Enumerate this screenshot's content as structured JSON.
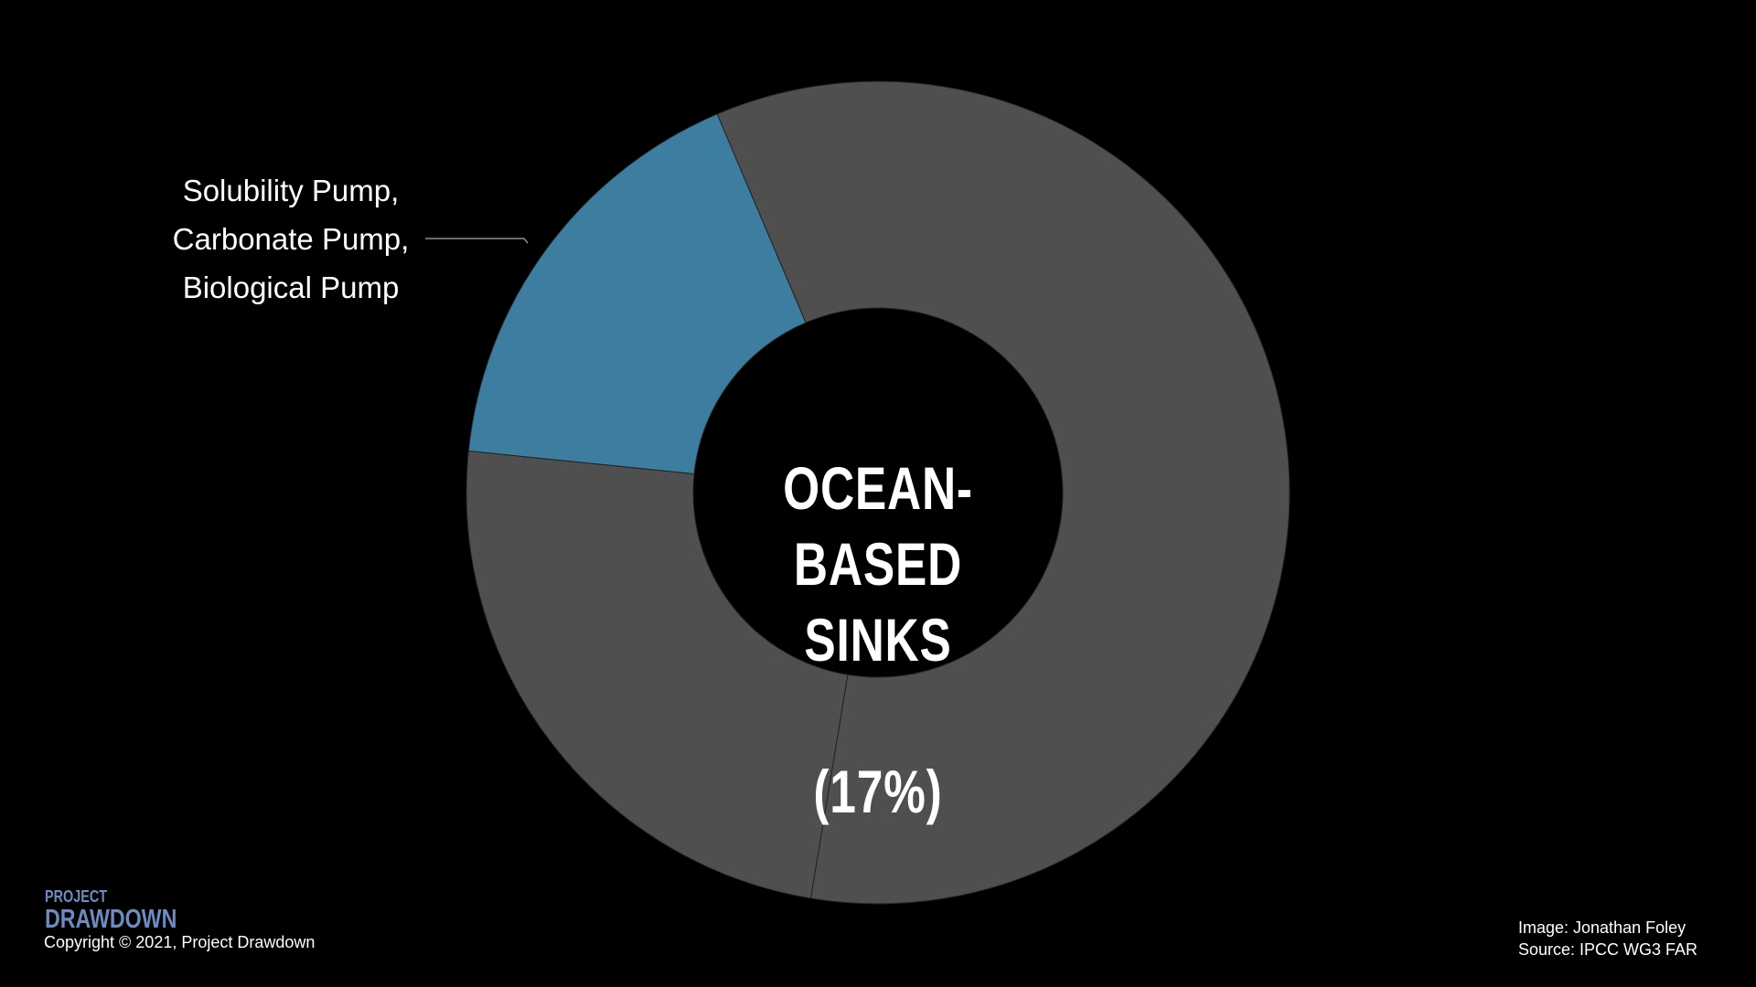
{
  "chart_data": {
    "type": "donut",
    "title": "OCEAN-BASED\nSINKS",
    "categories": [
      null,
      null,
      "Solubility Pump,\nCarbonate Pump,\nBiological Pump"
    ],
    "values": [
      59,
      24,
      17
    ],
    "value_labels": [
      null,
      null,
      "(17%)"
    ],
    "colors": [
      "#4f4f4f",
      "#4f4f4f",
      "#3d7ea0"
    ]
  },
  "footer": {
    "logo_top": "PROJECT",
    "logo_bottom": "DRAWDOWN",
    "copyright": "Copyright © 2021, Project Drawdown",
    "credit_image": "Image: Jonathan Foley",
    "credit_source": "Source: IPCC WG3 FAR"
  }
}
